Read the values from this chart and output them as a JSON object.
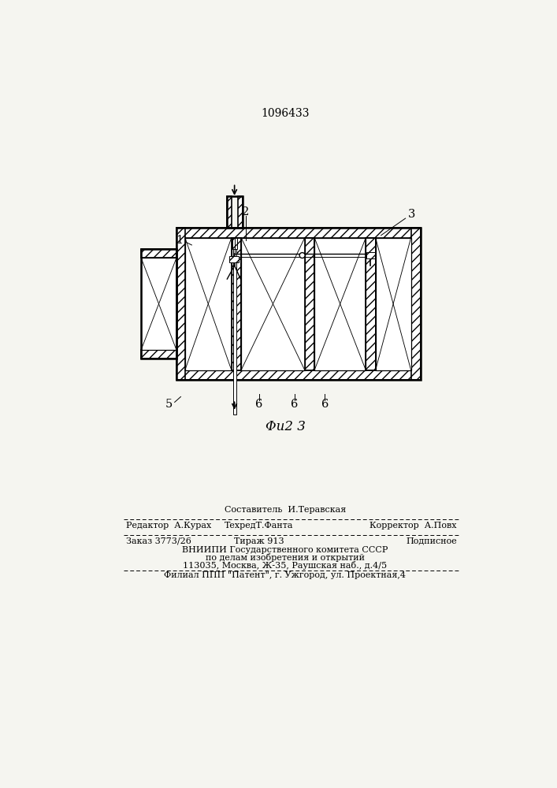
{
  "patent_number": "1096433",
  "fig_label": "Φu2 3",
  "bg_color": "#f5f5f0",
  "line_color": "#000000",
  "label_1": "1",
  "label_2": "2",
  "label_3": "3",
  "label_5": "5",
  "label_6a": "6",
  "label_6b": "6",
  "label_6c": "6",
  "footer_col1_row1": "Редактор  А.Курах",
  "footer_col2_row1": "ТехредТ.Фанта",
  "footer_col3_row1": "Корректор  А.Повх",
  "footer_col2_row0": "Составитель  И.Теравская",
  "footer_order": "Заказ 3773/26",
  "footer_tirazh": "Тираж 913",
  "footer_podp": "Подписное",
  "footer_vniip1": "ВНИИПИ Государственного комитета СССР",
  "footer_vniip2": "по делам изобретения и открытий",
  "footer_vniip3": "113035, Москва, Ж-35, Раушская наб., д.4/5",
  "footer_filial": "Филиал ППП \"Патент\", г. Ужгород, ул. Проектная,4"
}
